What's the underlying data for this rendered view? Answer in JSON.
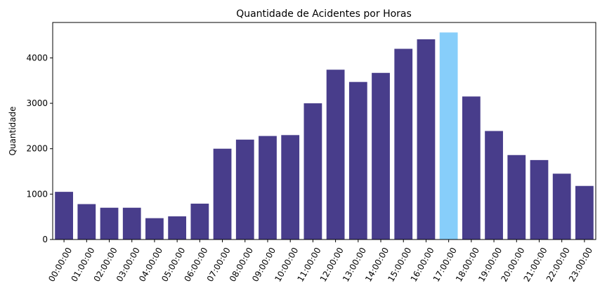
{
  "chart_data": {
    "type": "bar",
    "title": "Quantidade de Acidentes por Horas",
    "xlabel": "",
    "ylabel": "Quantidade",
    "ylim": [
      0,
      4780
    ],
    "yticks": [
      0,
      1000,
      2000,
      3000,
      4000
    ],
    "grid": false,
    "legend": "none",
    "categories": [
      "00:00:00",
      "01:00:00",
      "02:00:00",
      "03:00:00",
      "04:00:00",
      "05:00:00",
      "06:00:00",
      "07:00:00",
      "08:00:00",
      "09:00:00",
      "10:00:00",
      "11:00:00",
      "12:00:00",
      "13:00:00",
      "14:00:00",
      "15:00:00",
      "16:00:00",
      "17:00:00",
      "18:00:00",
      "19:00:00",
      "20:00:00",
      "21:00:00",
      "22:00:00",
      "23:00:00"
    ],
    "values": [
      1050,
      780,
      700,
      700,
      470,
      510,
      790,
      2000,
      2200,
      2280,
      2300,
      3000,
      3740,
      3470,
      3670,
      4200,
      4410,
      4560,
      3150,
      2390,
      1860,
      1750,
      1450,
      1180
    ],
    "highlight_index": 17,
    "colors": {
      "bar": "#483d8b",
      "highlight": "#87cefa",
      "axis": "#000000"
    }
  }
}
